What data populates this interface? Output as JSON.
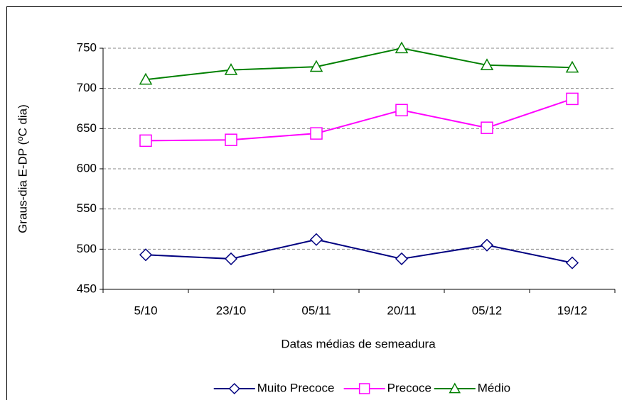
{
  "chart_data": {
    "type": "line",
    "x_label": "Datas médias de semeadura",
    "y_label": "Graus-dia E-DP (ºC dia)",
    "categories": [
      "5/10",
      "23/10",
      "05/11",
      "20/11",
      "05/12",
      "19/12"
    ],
    "series": [
      {
        "name": "Muito Precoce",
        "color": "#000080",
        "marker": "diamond",
        "values": [
          493,
          488,
          512,
          488,
          505,
          483
        ]
      },
      {
        "name": "Precoce",
        "color": "#ff00ff",
        "marker": "square",
        "values": [
          635,
          636,
          644,
          673,
          651,
          687
        ]
      },
      {
        "name": "Médio",
        "color": "#008000",
        "marker": "triangle",
        "values": [
          711,
          723,
          727,
          750,
          729,
          726
        ]
      }
    ],
    "ylim": [
      450,
      750
    ],
    "yticks": [
      450,
      500,
      550,
      600,
      650,
      700,
      750
    ],
    "grid": true,
    "legend": "bottom"
  }
}
